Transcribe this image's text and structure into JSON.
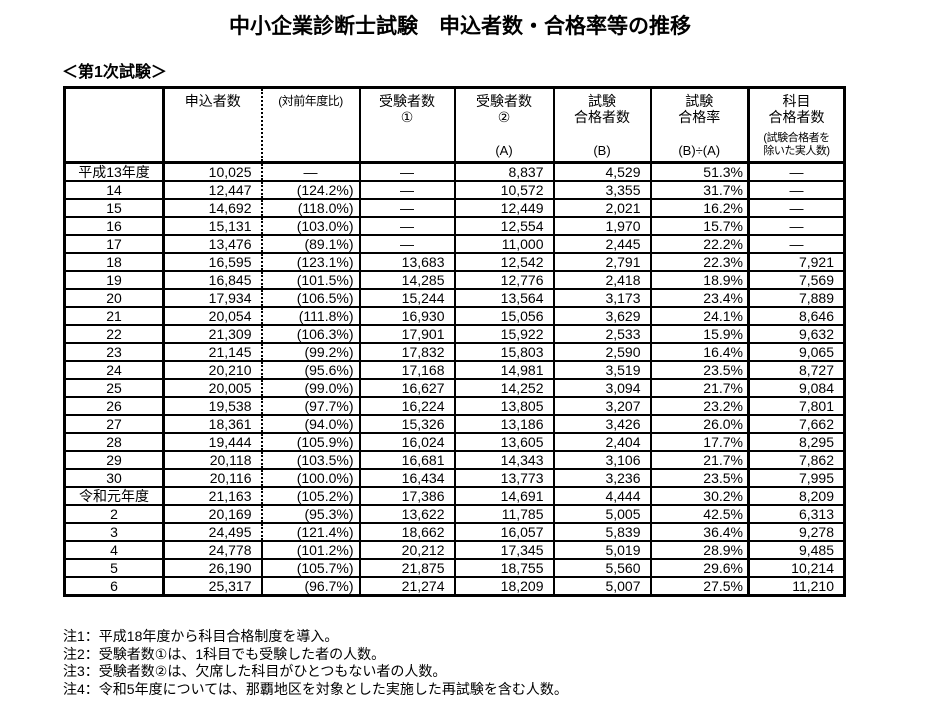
{
  "title": "中小企業診断士試験　申込者数・合格率等の推移",
  "section_label": "＜第1次試験＞",
  "colors": {
    "text": "#000000",
    "background": "#ffffff",
    "border": "#000000"
  },
  "table": {
    "header": {
      "year": "",
      "applicants": "申込者数",
      "yoy": "(対前年度比)",
      "examinees1_l1": "受験者数",
      "examinees1_l2": "①",
      "examinees2_l1": "受験者数",
      "examinees2_l2": "②",
      "examinees2_bottom": "(A)",
      "passers_l1": "試験",
      "passers_l2": "合格者数",
      "passers_bottom": "(B)",
      "rate_l1": "試験",
      "rate_l2": "合格率",
      "rate_bottom": "(B)÷(A)",
      "subject_l1": "科目",
      "subject_l2": "合格者数",
      "subject_s1": "(試験合格者を",
      "subject_s2": "除いた実人数)"
    },
    "rows": [
      {
        "year": "平成13年度",
        "applicants": "10,025",
        "yoy": "―",
        "examinees1": "―",
        "examinees2": "8,837",
        "passers": "4,529",
        "rate": "51.3%",
        "subject": "―"
      },
      {
        "year": "14",
        "applicants": "12,447",
        "yoy": "(124.2%)",
        "examinees1": "―",
        "examinees2": "10,572",
        "passers": "3,355",
        "rate": "31.7%",
        "subject": "―"
      },
      {
        "year": "15",
        "applicants": "14,692",
        "yoy": "(118.0%)",
        "examinees1": "―",
        "examinees2": "12,449",
        "passers": "2,021",
        "rate": "16.2%",
        "subject": "―"
      },
      {
        "year": "16",
        "applicants": "15,131",
        "yoy": "(103.0%)",
        "examinees1": "―",
        "examinees2": "12,554",
        "passers": "1,970",
        "rate": "15.7%",
        "subject": "―"
      },
      {
        "year": "17",
        "applicants": "13,476",
        "yoy": "(89.1%)",
        "examinees1": "―",
        "examinees2": "11,000",
        "passers": "2,445",
        "rate": "22.2%",
        "subject": "―"
      },
      {
        "year": "18",
        "applicants": "16,595",
        "yoy": "(123.1%)",
        "examinees1": "13,683",
        "examinees2": "12,542",
        "passers": "2,791",
        "rate": "22.3%",
        "subject": "7,921"
      },
      {
        "year": "19",
        "applicants": "16,845",
        "yoy": "(101.5%)",
        "examinees1": "14,285",
        "examinees2": "12,776",
        "passers": "2,418",
        "rate": "18.9%",
        "subject": "7,569"
      },
      {
        "year": "20",
        "applicants": "17,934",
        "yoy": "(106.5%)",
        "examinees1": "15,244",
        "examinees2": "13,564",
        "passers": "3,173",
        "rate": "23.4%",
        "subject": "7,889"
      },
      {
        "year": "21",
        "applicants": "20,054",
        "yoy": "(111.8%)",
        "examinees1": "16,930",
        "examinees2": "15,056",
        "passers": "3,629",
        "rate": "24.1%",
        "subject": "8,646"
      },
      {
        "year": "22",
        "applicants": "21,309",
        "yoy": "(106.3%)",
        "examinees1": "17,901",
        "examinees2": "15,922",
        "passers": "2,533",
        "rate": "15.9%",
        "subject": "9,632"
      },
      {
        "year": "23",
        "applicants": "21,145",
        "yoy": "(99.2%)",
        "examinees1": "17,832",
        "examinees2": "15,803",
        "passers": "2,590",
        "rate": "16.4%",
        "subject": "9,065"
      },
      {
        "year": "24",
        "applicants": "20,210",
        "yoy": "(95.6%)",
        "examinees1": "17,168",
        "examinees2": "14,981",
        "passers": "3,519",
        "rate": "23.5%",
        "subject": "8,727"
      },
      {
        "year": "25",
        "applicants": "20,005",
        "yoy": "(99.0%)",
        "examinees1": "16,627",
        "examinees2": "14,252",
        "passers": "3,094",
        "rate": "21.7%",
        "subject": "9,084"
      },
      {
        "year": "26",
        "applicants": "19,538",
        "yoy": "(97.7%)",
        "examinees1": "16,224",
        "examinees2": "13,805",
        "passers": "3,207",
        "rate": "23.2%",
        "subject": "7,801"
      },
      {
        "year": "27",
        "applicants": "18,361",
        "yoy": "(94.0%)",
        "examinees1": "15,326",
        "examinees2": "13,186",
        "passers": "3,426",
        "rate": "26.0%",
        "subject": "7,662"
      },
      {
        "year": "28",
        "applicants": "19,444",
        "yoy": "(105.9%)",
        "examinees1": "16,024",
        "examinees2": "13,605",
        "passers": "2,404",
        "rate": "17.7%",
        "subject": "8,295"
      },
      {
        "year": "29",
        "applicants": "20,118",
        "yoy": "(103.5%)",
        "examinees1": "16,681",
        "examinees2": "14,343",
        "passers": "3,106",
        "rate": "21.7%",
        "subject": "7,862"
      },
      {
        "year": "30",
        "applicants": "20,116",
        "yoy": "(100.0%)",
        "examinees1": "16,434",
        "examinees2": "13,773",
        "passers": "3,236",
        "rate": "23.5%",
        "subject": "7,995"
      },
      {
        "year": "令和元年度",
        "applicants": "21,163",
        "yoy": "(105.2%)",
        "examinees1": "17,386",
        "examinees2": "14,691",
        "passers": "4,444",
        "rate": "30.2%",
        "subject": "8,209"
      },
      {
        "year": "2",
        "applicants": "20,169",
        "yoy": "(95.3%)",
        "examinees1": "13,622",
        "examinees2": "11,785",
        "passers": "5,005",
        "rate": "42.5%",
        "subject": "6,313"
      },
      {
        "year": "3",
        "applicants": "24,495",
        "yoy": "(121.4%)",
        "examinees1": "18,662",
        "examinees2": "16,057",
        "passers": "5,839",
        "rate": "36.4%",
        "subject": "9,278"
      },
      {
        "year": "4",
        "applicants": "24,778",
        "yoy": "(101.2%)",
        "examinees1": "20,212",
        "examinees2": "17,345",
        "passers": "5,019",
        "rate": "28.9%",
        "subject": "9,485"
      },
      {
        "year": "5",
        "applicants": "26,190",
        "yoy": "(105.7%)",
        "examinees1": "21,875",
        "examinees2": "18,755",
        "passers": "5,560",
        "rate": "29.6%",
        "subject": "10,214"
      },
      {
        "year": "6",
        "applicants": "25,317",
        "yoy": "(96.7%)",
        "examinees1": "21,274",
        "examinees2": "18,209",
        "passers": "5,007",
        "rate": "27.5%",
        "subject": "11,210"
      }
    ]
  },
  "notes": [
    "注1：平成18年度から科目合格制度を導入。",
    "注2：受験者数①は、1科目でも受験した者の人数。",
    "注3：受験者数②は、欠席した科目がひとつもない者の人数。",
    "注4：令和5年度については、那覇地区を対象とした実施した再試験を含む人数。"
  ]
}
